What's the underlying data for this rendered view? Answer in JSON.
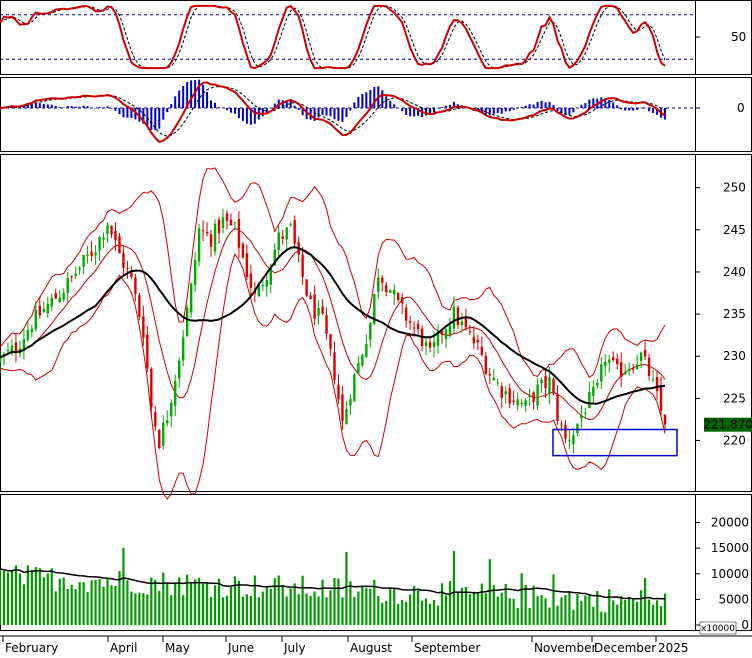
{
  "chart_data": [
    {
      "panel": "stochastic",
      "type": "line",
      "y_ticks": [
        "50"
      ],
      "reference_levels": [
        80,
        20
      ],
      "grid": false
    },
    {
      "panel": "macd",
      "type": "bar",
      "y_ticks": [
        "0"
      ],
      "grid": false
    },
    {
      "panel": "price",
      "type": "candlestick",
      "ylim": [
        214,
        254
      ],
      "y_ticks": [
        "250",
        "245",
        "240",
        "235",
        "230",
        "225",
        "220"
      ],
      "current_price_label": "221.8700",
      "overlays": [
        "bollinger-bands",
        "moving-average"
      ],
      "highlight_box": {
        "x_range": [
          "November",
          "2025"
        ],
        "y_range": [
          218.2,
          221.3
        ]
      },
      "samples": [
        {
          "t": 0,
          "c": 229.5
        },
        {
          "t": 8,
          "c": 231
        },
        {
          "t": 16,
          "c": 234
        },
        {
          "t": 24,
          "c": 236
        },
        {
          "t": 32,
          "c": 238
        },
        {
          "t": 40,
          "c": 240.5
        },
        {
          "t": 48,
          "c": 243
        },
        {
          "t": 54,
          "c": 246
        },
        {
          "t": 60,
          "c": 242
        },
        {
          "t": 66,
          "c": 239
        },
        {
          "t": 72,
          "c": 233
        },
        {
          "t": 76,
          "c": 224
        },
        {
          "t": 80,
          "c": 220
        },
        {
          "t": 84,
          "c": 223
        },
        {
          "t": 90,
          "c": 230
        },
        {
          "t": 96,
          "c": 238
        },
        {
          "t": 100,
          "c": 245
        },
        {
          "t": 106,
          "c": 244
        },
        {
          "t": 112,
          "c": 246
        },
        {
          "t": 118,
          "c": 245
        },
        {
          "t": 124,
          "c": 240
        },
        {
          "t": 128,
          "c": 237
        },
        {
          "t": 134,
          "c": 240
        },
        {
          "t": 140,
          "c": 244
        },
        {
          "t": 146,
          "c": 245
        },
        {
          "t": 150,
          "c": 241
        },
        {
          "t": 156,
          "c": 236
        },
        {
          "t": 162,
          "c": 234
        },
        {
          "t": 168,
          "c": 228
        },
        {
          "t": 172,
          "c": 222
        },
        {
          "t": 176,
          "c": 226
        },
        {
          "t": 180,
          "c": 229
        },
        {
          "t": 186,
          "c": 234
        },
        {
          "t": 190,
          "c": 240
        },
        {
          "t": 196,
          "c": 238
        },
        {
          "t": 200,
          "c": 236
        },
        {
          "t": 206,
          "c": 234
        },
        {
          "t": 212,
          "c": 232
        },
        {
          "t": 216,
          "c": 230
        },
        {
          "t": 222,
          "c": 233
        },
        {
          "t": 228,
          "c": 235
        },
        {
          "t": 234,
          "c": 233
        },
        {
          "t": 240,
          "c": 231
        },
        {
          "t": 246,
          "c": 228
        },
        {
          "t": 252,
          "c": 226
        },
        {
          "t": 258,
          "c": 225
        },
        {
          "t": 264,
          "c": 224
        },
        {
          "t": 270,
          "c": 226
        },
        {
          "t": 276,
          "c": 227
        },
        {
          "t": 280,
          "c": 223
        },
        {
          "t": 284,
          "c": 220
        },
        {
          "t": 288,
          "c": 221
        },
        {
          "t": 294,
          "c": 224
        },
        {
          "t": 300,
          "c": 226
        },
        {
          "t": 304,
          "c": 230
        },
        {
          "t": 310,
          "c": 228
        },
        {
          "t": 316,
          "c": 229
        },
        {
          "t": 322,
          "c": 230
        },
        {
          "t": 326,
          "c": 228
        },
        {
          "t": 330,
          "c": 225
        },
        {
          "t": 334,
          "c": 221.87
        }
      ]
    },
    {
      "panel": "volume",
      "type": "bar",
      "ylim": [
        0,
        24000
      ],
      "y_ticks": [
        "20000",
        "15000",
        "10000",
        "5000",
        "0"
      ],
      "unit_label": "x10000",
      "x_tick_labels": [
        "February",
        "April",
        "May",
        "June",
        "July",
        "August",
        "September",
        "November",
        "December",
        "2025"
      ]
    }
  ],
  "colors": {
    "up_candle": "#00aa00",
    "down_candle": "#dd0000",
    "bollinger": "#cc0000",
    "moving_average": "#000000",
    "stochastic_k": "#cc0000",
    "stochastic_d": "#000000",
    "macd_histogram": "#0000cc",
    "volume_bar": "#009900",
    "highlight_box": "#0000cc",
    "price_tag_bg": "#006600",
    "price_tag_text": "#ffffff"
  }
}
